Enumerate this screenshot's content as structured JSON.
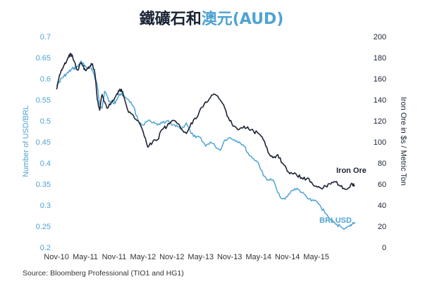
{
  "colors": {
    "title_dark": "#1b2434",
    "title_accent": "#4ea3d3",
    "left_axis": "#4ea3d3",
    "right_axis": "#1b2434",
    "text": "#333333",
    "grid": "#e6e6e6"
  },
  "chart_data": {
    "type": "line",
    "title_parts": [
      "鐵礦石和",
      "澳元(AUD)"
    ],
    "xlabel": "",
    "y_left_label": "Number of USD/BRL",
    "y_right_label": "Iron Ore in $s / Metric Ton",
    "x_tick_labels": [
      "Nov-10",
      "May-11",
      "Nov-11",
      "May-12",
      "Nov-12",
      "May-13",
      "Nov-13",
      "May-14",
      "Nov-14",
      "May-15"
    ],
    "y_left_ticks": [
      "0.2",
      "0.25",
      "0.3",
      "0.35",
      "0.4",
      "0.45",
      "0.5",
      "0.55",
      "0.6",
      "0.65",
      "0.7"
    ],
    "y_right_ticks": [
      "0",
      "20",
      "40",
      "60",
      "80",
      "100",
      "120",
      "140",
      "160",
      "180",
      "200"
    ],
    "y_left_lim": [
      0.2,
      0.7
    ],
    "y_right_lim": [
      0,
      200
    ],
    "x_range_months": [
      0,
      63
    ],
    "grid": false,
    "series": [
      {
        "name": "BRLUSD",
        "axis": "left",
        "color": "#4ea3d3",
        "x": [
          0,
          0.5,
          1,
          1.5,
          2,
          2.5,
          3,
          3.5,
          4,
          4.5,
          5,
          5.5,
          6,
          6.5,
          7,
          7.5,
          8,
          8.5,
          9,
          9.5,
          10,
          10.5,
          11,
          11.5,
          12,
          12.5,
          13,
          13.5,
          14,
          15,
          16,
          17,
          18,
          19,
          20,
          21,
          22,
          23,
          24,
          25,
          26,
          27,
          28,
          29,
          30,
          31,
          32,
          33,
          34,
          35,
          36,
          37,
          38,
          39,
          40,
          41,
          42,
          43,
          44,
          45,
          46,
          47,
          48,
          49,
          50,
          51,
          52,
          53,
          54,
          55,
          56,
          57,
          58,
          59,
          60,
          61,
          61.5,
          62
        ],
        "values": [
          0.585,
          0.59,
          0.6,
          0.605,
          0.61,
          0.615,
          0.62,
          0.625,
          0.625,
          0.63,
          0.64,
          0.635,
          0.63,
          0.625,
          0.63,
          0.62,
          0.6,
          0.585,
          0.54,
          0.53,
          0.57,
          0.56,
          0.545,
          0.545,
          0.54,
          0.55,
          0.56,
          0.565,
          0.56,
          0.55,
          0.535,
          0.5,
          0.49,
          0.5,
          0.495,
          0.49,
          0.495,
          0.5,
          0.49,
          0.49,
          0.48,
          0.495,
          0.47,
          0.46,
          0.46,
          0.44,
          0.45,
          0.44,
          0.43,
          0.455,
          0.46,
          0.455,
          0.45,
          0.44,
          0.42,
          0.41,
          0.4,
          0.37,
          0.36,
          0.36,
          0.33,
          0.315,
          0.32,
          0.335,
          0.34,
          0.33,
          0.32,
          0.31,
          0.31,
          0.295,
          0.28,
          0.265,
          0.255,
          0.25,
          0.245,
          0.25,
          0.255,
          0.26
        ]
      },
      {
        "name": "Iron Ore",
        "axis": "right",
        "color": "#1b2434",
        "x": [
          0,
          0.5,
          1,
          1.5,
          2,
          2.5,
          3,
          3.5,
          4,
          4.5,
          5,
          5.5,
          6,
          6.5,
          7,
          7.5,
          8,
          8.5,
          9,
          9.5,
          10,
          10.5,
          11,
          11.5,
          12,
          12.5,
          13,
          13.5,
          14,
          15,
          16,
          17,
          18,
          19,
          20,
          21,
          22,
          23,
          24,
          25,
          26,
          27,
          28,
          29,
          30,
          31,
          32,
          33,
          34,
          35,
          36,
          37,
          38,
          39,
          40,
          41,
          42,
          43,
          44,
          45,
          46,
          47,
          48,
          49,
          50,
          51,
          52,
          53,
          54,
          55,
          56,
          57,
          58,
          59,
          60,
          61,
          61.5,
          62
        ],
        "values": [
          150,
          160,
          168,
          172,
          175,
          180,
          184,
          178,
          172,
          168,
          175,
          172,
          168,
          170,
          172,
          174,
          165,
          140,
          130,
          145,
          138,
          132,
          136,
          138,
          140,
          145,
          148,
          150,
          143,
          128,
          125,
          120,
          110,
          95,
          100,
          102,
          112,
          115,
          120,
          118,
          112,
          108,
          118,
          122,
          132,
          138,
          142,
          145,
          140,
          132,
          120,
          115,
          112,
          115,
          112,
          110,
          108,
          102,
          90,
          85,
          88,
          80,
          72,
          70,
          68,
          66,
          65,
          62,
          58,
          56,
          58,
          60,
          62,
          58,
          55,
          57,
          60,
          58
        ]
      }
    ]
  },
  "source_text": "Source: Bloomberg Professional (TIO1 and HG1)"
}
